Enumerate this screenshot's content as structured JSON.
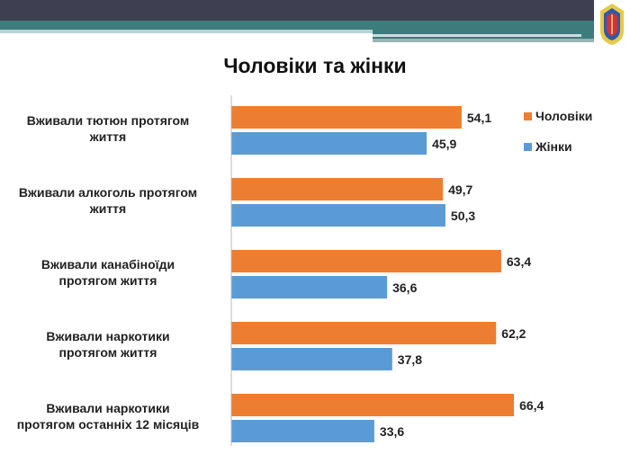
{
  "chart_data": {
    "type": "bar",
    "orientation": "horizontal",
    "title": "Чоловіки та жінки",
    "categories": [
      "Вживали тютюн протягом життя",
      "Вживали алкоголь протягом життя",
      "Вживали канабіноїди протягом життя",
      "Вживали наркотики протягом життя",
      "Вживали наркотики протягом останніх 12 місяців"
    ],
    "category_labels_display": [
      "Вживали тютюн протягом життя",
      "Вживали алкоголь протягом життя",
      "Вживали канабіноїди протягом життя",
      "Вживали наркотики протягом життя",
      "Вживали наркотики протягом останніх 12 місяців"
    ],
    "value_labels": {
      "men": [
        "54,1",
        "49,7",
        "63,4",
        "62,2",
        "66,4"
      ],
      "women": [
        "45,9",
        "50,3",
        "36,6",
        "37,8",
        "33,6"
      ]
    },
    "series": [
      {
        "name": "Чоловіки",
        "color": "#ed7d31",
        "values": [
          54.1,
          49.7,
          63.4,
          62.2,
          66.4
        ]
      },
      {
        "name": "Жінки",
        "color": "#5b9bd5",
        "values": [
          45.9,
          50.3,
          36.6,
          37.8,
          33.6
        ]
      }
    ],
    "xlim": [
      0,
      100
    ],
    "grid": false,
    "legend": "top-right"
  }
}
